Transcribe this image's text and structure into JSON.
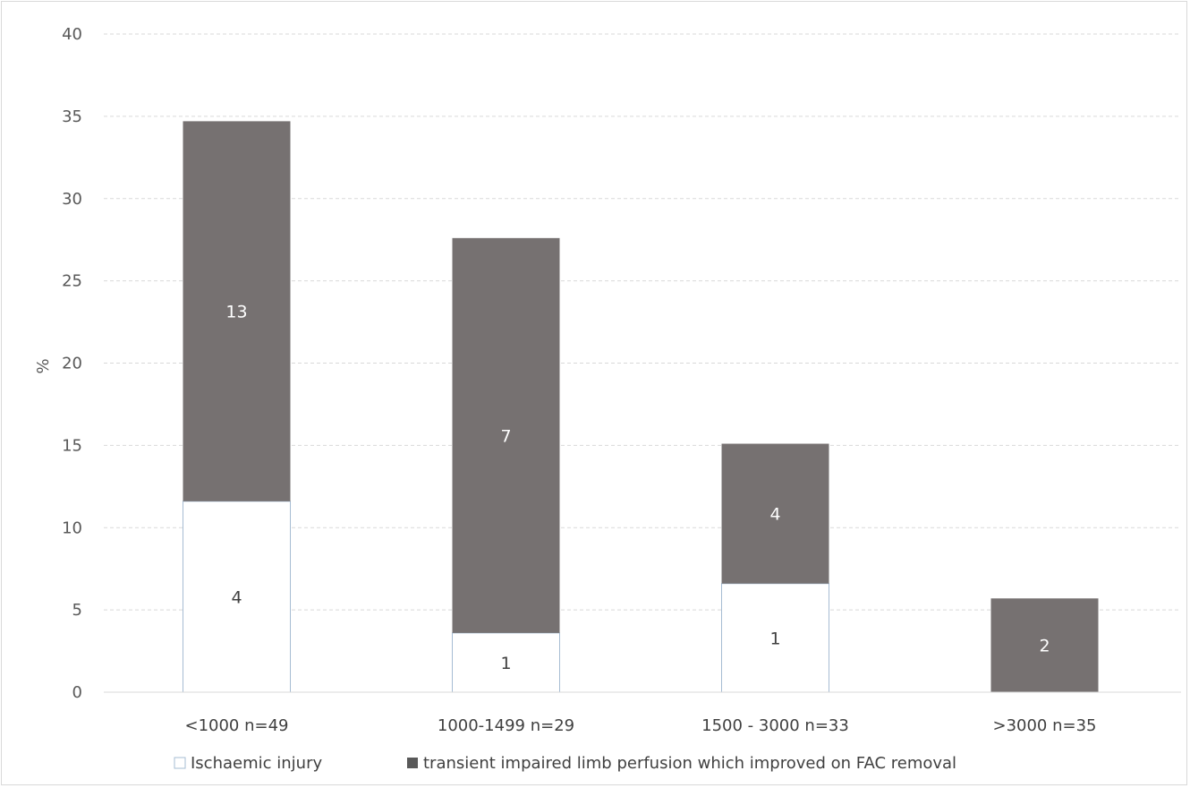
{
  "chart_data": {
    "type": "bar",
    "stacked": true,
    "title": "",
    "xlabel": "",
    "ylabel": "%",
    "ylim": [
      0,
      40
    ],
    "yticks": [
      0,
      5,
      10,
      15,
      20,
      25,
      30,
      35,
      40
    ],
    "grid": true,
    "legend_position": "bottom",
    "categories": [
      "<1000 n=49",
      "1000-1499 n=29",
      "1500 - 3000 n=33",
      ">3000 n=35"
    ],
    "series": [
      {
        "name": "Ischaemic injury",
        "color": "#ffffff",
        "stroke": "#a6bcd3",
        "values": [
          11.6,
          3.6,
          6.6,
          0
        ],
        "labels": [
          "4",
          "1",
          "1",
          ""
        ],
        "label_color": "#404040"
      },
      {
        "name": "transient impaired limb perfusion which improved on FAC removal",
        "color": "#767171",
        "stroke": "none",
        "values": [
          23.1,
          24.0,
          8.5,
          5.7
        ],
        "labels": [
          "13",
          "7",
          "4",
          "2"
        ],
        "label_color": "#ffffff"
      }
    ],
    "legend": {
      "items": [
        {
          "symbol": "□",
          "text": "Ischaemic injury"
        },
        {
          "symbol": "■",
          "text": "transient impaired limb perfusion which improved on FAC removal"
        }
      ]
    }
  }
}
